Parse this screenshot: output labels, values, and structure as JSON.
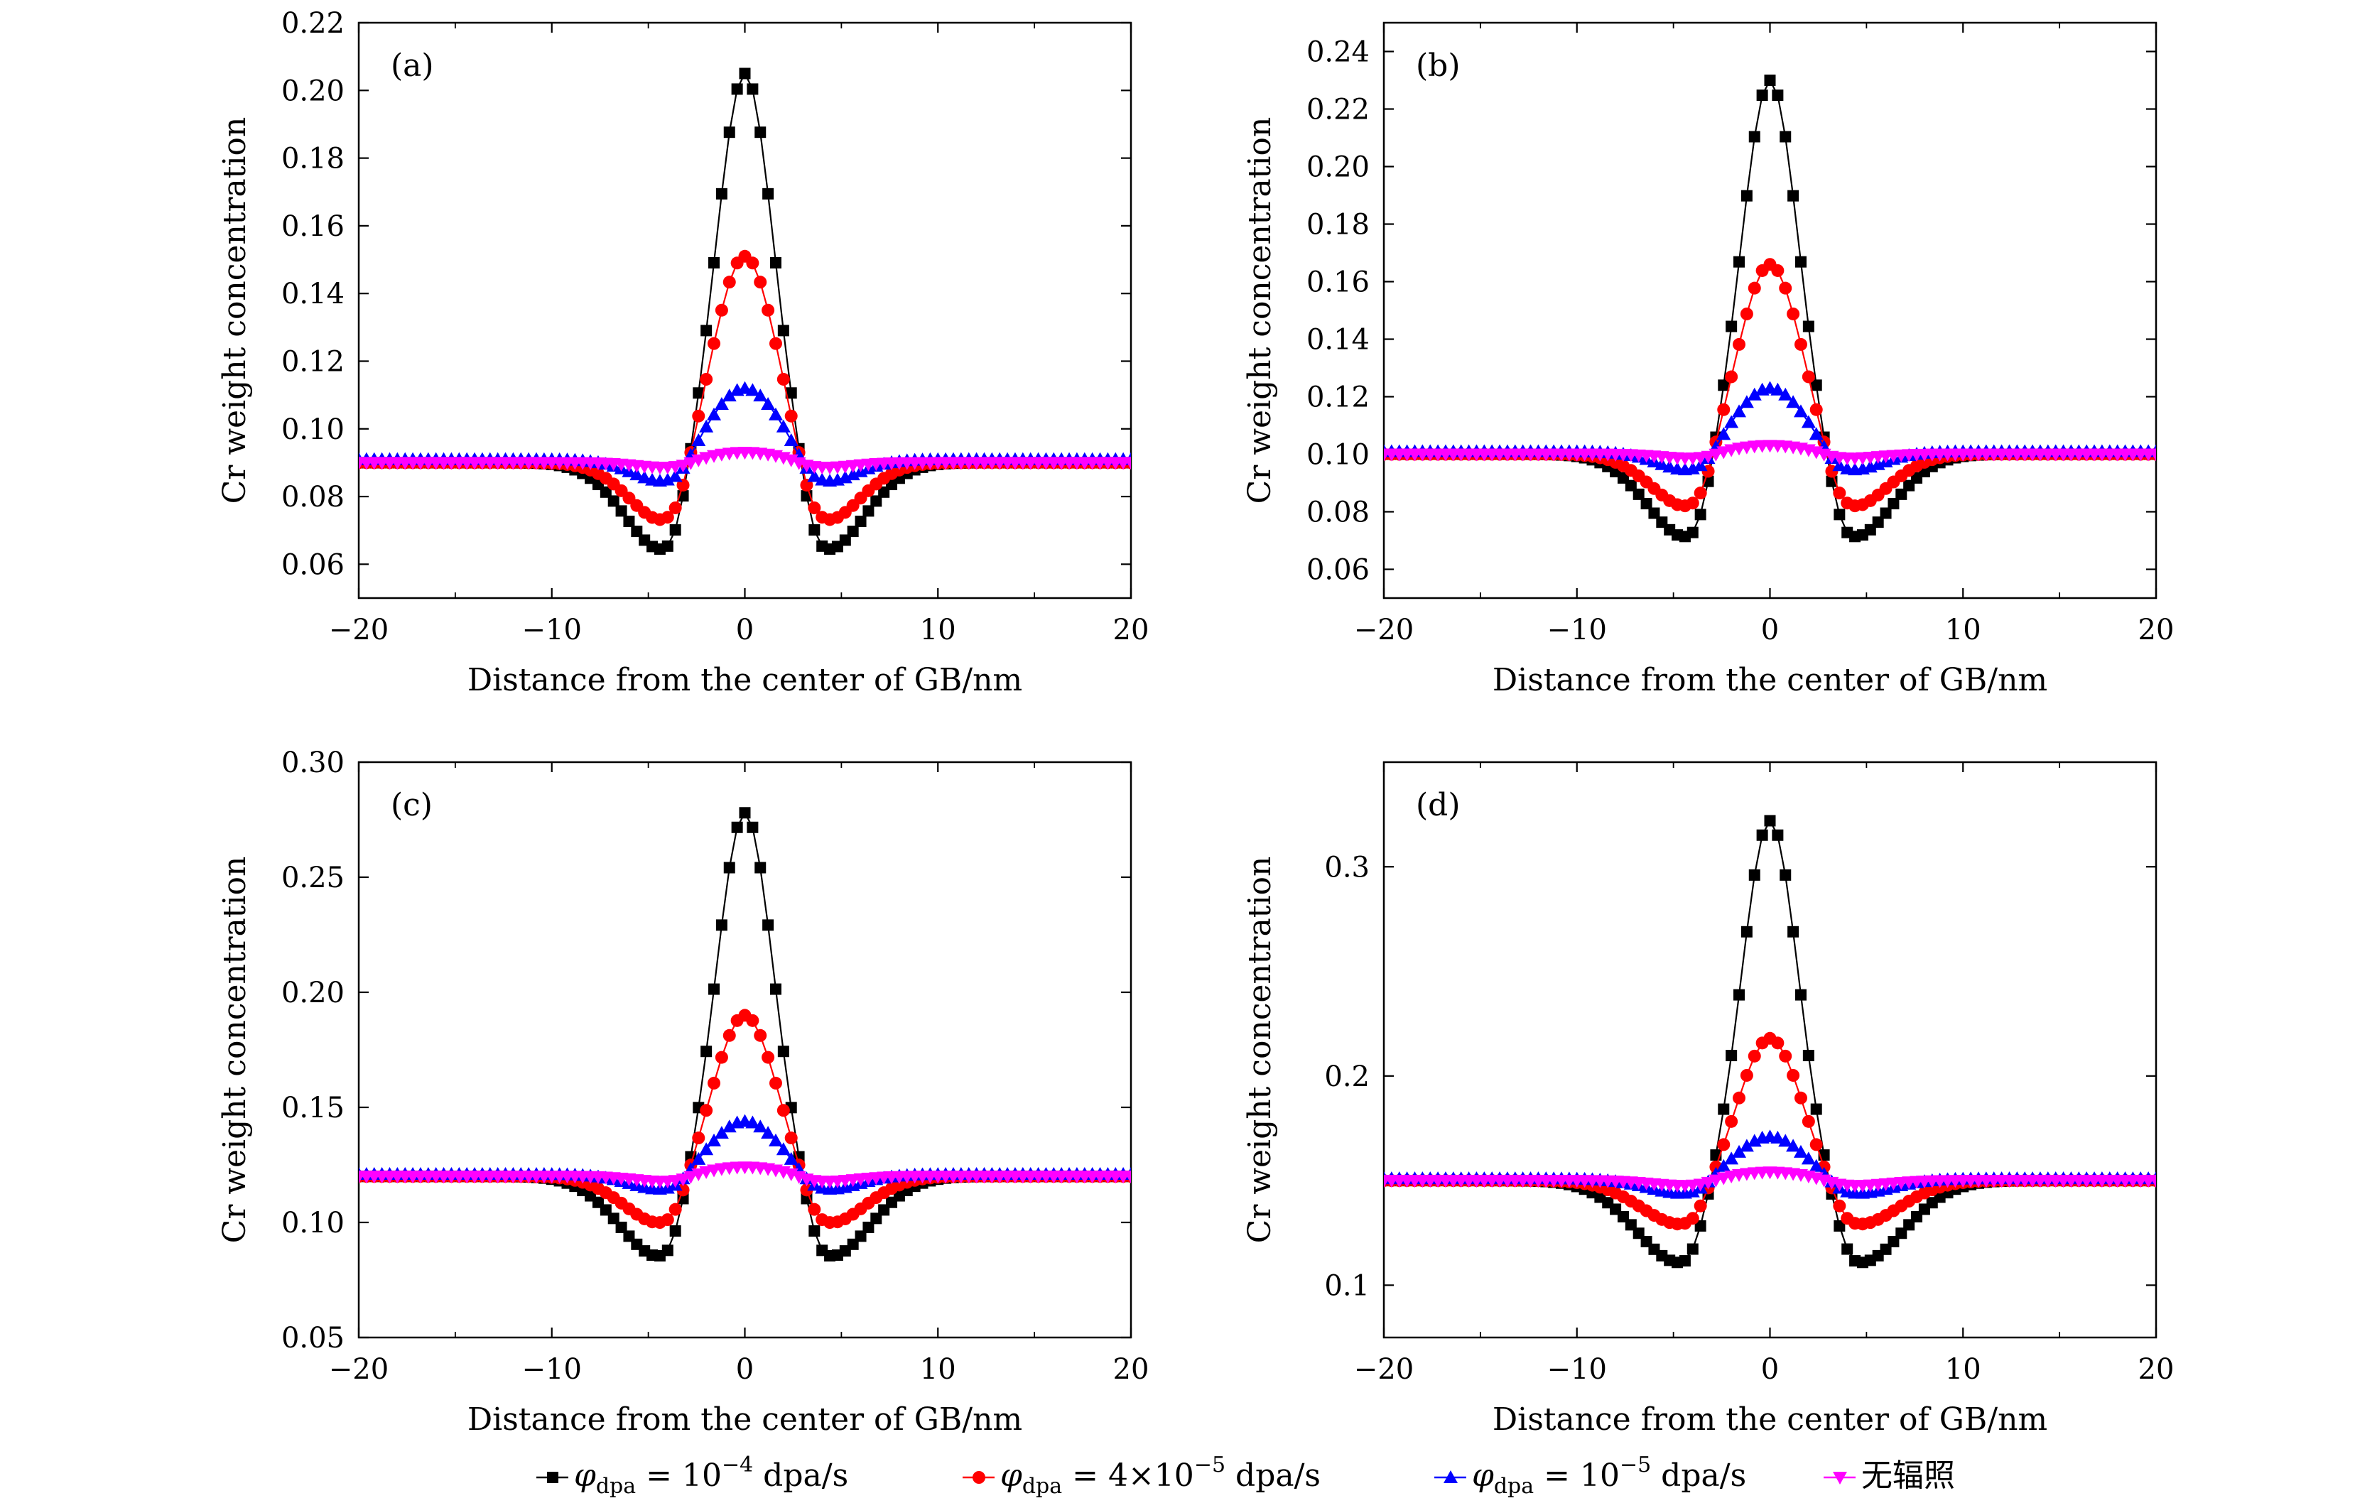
{
  "chart_data": [
    {
      "type": "line",
      "panel_label": "(a)",
      "xlabel": "Distance from the center of GB/nm",
      "ylabel": "Cr weight concentration",
      "xlim": [
        -20,
        20
      ],
      "ylim": [
        0.05,
        0.22
      ],
      "xticks": [
        -20,
        -10,
        0,
        10,
        20
      ],
      "xtick_labels": [
        "−20",
        "−10",
        "0",
        "10",
        "20"
      ],
      "yticks": [
        0.06,
        0.08,
        0.1,
        0.12,
        0.14,
        0.16,
        0.18,
        0.2,
        0.22
      ],
      "ytick_labels": [
        "0.06",
        "0.08",
        "0.10",
        "0.12",
        "0.14",
        "0.16",
        "0.18",
        "0.20",
        "0.22"
      ],
      "grid": false,
      "series": [
        {
          "peak": 0.205,
          "trough": 0.063,
          "trough_x": 4.0,
          "baseline": 0.09
        },
        {
          "peak": 0.151,
          "trough": 0.071,
          "trough_x": 3.8,
          "baseline": 0.09
        },
        {
          "peak": 0.112,
          "trough": 0.083,
          "trough_x": 3.6,
          "baseline": 0.091
        },
        {
          "peak": 0.093,
          "trough": 0.088,
          "trough_x": 3.4,
          "baseline": 0.09
        }
      ]
    },
    {
      "type": "line",
      "panel_label": "(b)",
      "xlabel": "Distance from the center of GB/nm",
      "ylabel": "Cr weight concentration",
      "xlim": [
        -20,
        20
      ],
      "ylim": [
        0.05,
        0.25
      ],
      "xticks": [
        -20,
        -10,
        0,
        10,
        20
      ],
      "xtick_labels": [
        "−20",
        "−10",
        "0",
        "10",
        "20"
      ],
      "yticks": [
        0.06,
        0.08,
        0.1,
        0.12,
        0.14,
        0.16,
        0.18,
        0.2,
        0.22,
        0.24
      ],
      "ytick_labels": [
        "0.06",
        "0.08",
        "0.10",
        "0.12",
        "0.14",
        "0.16",
        "0.18",
        "0.20",
        "0.22",
        "0.24"
      ],
      "grid": false,
      "series": [
        {
          "peak": 0.23,
          "trough": 0.07,
          "trough_x": 4.1,
          "baseline": 0.1
        },
        {
          "peak": 0.166,
          "trough": 0.08,
          "trough_x": 3.9,
          "baseline": 0.1
        },
        {
          "peak": 0.123,
          "trough": 0.093,
          "trough_x": 3.6,
          "baseline": 0.101
        },
        {
          "peak": 0.103,
          "trough": 0.098,
          "trough_x": 3.4,
          "baseline": 0.1
        }
      ]
    },
    {
      "type": "line",
      "panel_label": "(c)",
      "xlabel": "Distance from the center of GB/nm",
      "ylabel": "Cr weight concentration",
      "xlim": [
        -20,
        20
      ],
      "ylim": [
        0.05,
        0.3
      ],
      "xticks": [
        -20,
        -10,
        0,
        10,
        20
      ],
      "xtick_labels": [
        "−20",
        "−10",
        "0",
        "10",
        "20"
      ],
      "yticks": [
        0.05,
        0.1,
        0.15,
        0.2,
        0.25,
        0.3
      ],
      "ytick_labels": [
        "0.05",
        "0.10",
        "0.15",
        "0.20",
        "0.25",
        "0.30"
      ],
      "grid": false,
      "series": [
        {
          "peak": 0.278,
          "trough": 0.084,
          "trough_x": 4.2,
          "baseline": 0.12
        },
        {
          "peak": 0.19,
          "trough": 0.098,
          "trough_x": 4.0,
          "baseline": 0.12
        },
        {
          "peak": 0.144,
          "trough": 0.113,
          "trough_x": 3.7,
          "baseline": 0.121
        },
        {
          "peak": 0.124,
          "trough": 0.117,
          "trough_x": 3.5,
          "baseline": 0.12
        }
      ]
    },
    {
      "type": "line",
      "panel_label": "(d)",
      "xlabel": "Distance from the center of GB/nm",
      "ylabel": "Cr weight concentration",
      "xlim": [
        -20,
        20
      ],
      "ylim": [
        0.075,
        0.35
      ],
      "xticks": [
        -20,
        -10,
        0,
        10,
        20
      ],
      "xtick_labels": [
        "−20",
        "−10",
        "0",
        "10",
        "20"
      ],
      "yticks": [
        0.1,
        0.2,
        0.3
      ],
      "ytick_labels": [
        "0.1",
        "0.2",
        "0.3"
      ],
      "grid": false,
      "series": [
        {
          "peak": 0.322,
          "trough": 0.11,
          "trough_x": 4.5,
          "baseline": 0.15
        },
        {
          "peak": 0.218,
          "trough": 0.128,
          "trough_x": 4.3,
          "baseline": 0.15
        },
        {
          "peak": 0.171,
          "trough": 0.143,
          "trough_x": 4.0,
          "baseline": 0.151
        },
        {
          "peak": 0.154,
          "trough": 0.147,
          "trough_x": 3.8,
          "baseline": 0.15
        }
      ]
    }
  ],
  "legend": {
    "placement": "bottom-center",
    "entries": [
      {
        "symbol": "φ",
        "subscript": "dpa",
        "equals": " = ",
        "value_prefix": "10",
        "exponent": "−4",
        "unit": " dpa/s",
        "marker": "square",
        "color": "#000000"
      },
      {
        "symbol": "φ",
        "subscript": "dpa",
        "equals": " = ",
        "value_prefix": "4×10",
        "exponent": "−5",
        "unit": " dpa/s",
        "marker": "circle",
        "color": "#ff0000"
      },
      {
        "symbol": "φ",
        "subscript": "dpa",
        "equals": " = ",
        "value_prefix": "10",
        "exponent": "−5",
        "unit": " dpa/s",
        "marker": "triangle-up",
        "color": "#0000ff"
      },
      {
        "text": "无辐照",
        "marker": "triangle-down",
        "color": "#ff00ff"
      }
    ]
  },
  "x_sample_step": 0.4
}
